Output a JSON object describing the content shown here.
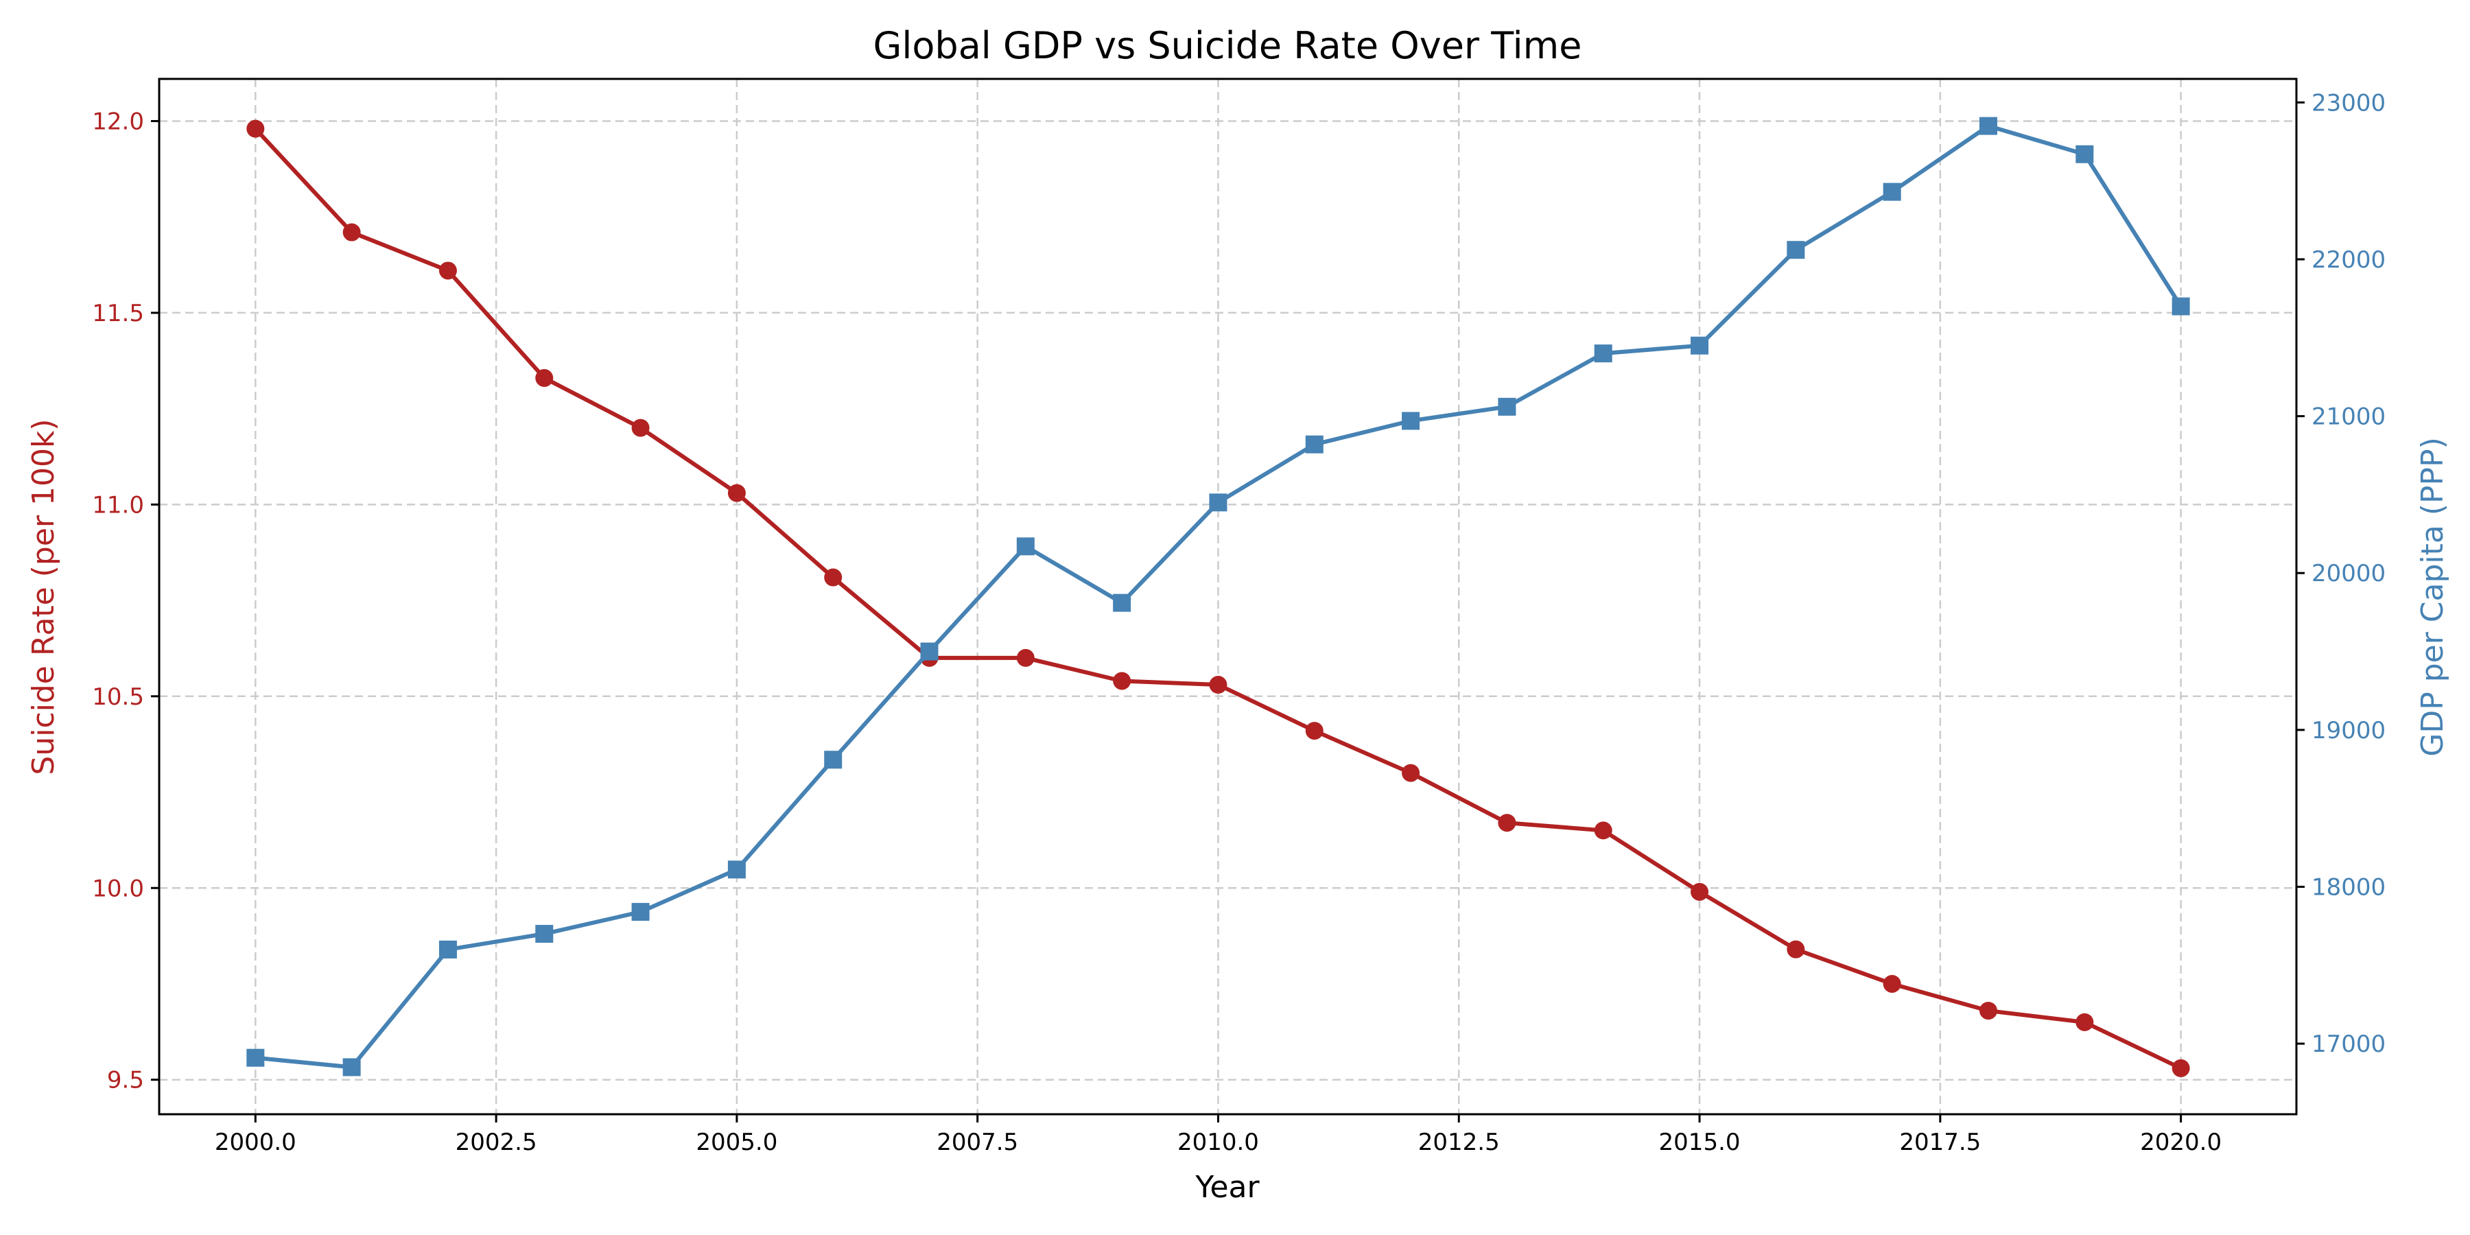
{
  "chart_data": {
    "type": "line",
    "title": "Global GDP vs Suicide Rate Over Time",
    "xlabel": "Year",
    "x": [
      2000,
      2001,
      2002,
      2003,
      2004,
      2005,
      2006,
      2007,
      2008,
      2009,
      2010,
      2011,
      2012,
      2013,
      2014,
      2015,
      2016,
      2017,
      2018,
      2019,
      2020
    ],
    "xlim": [
      1999,
      2021.2
    ],
    "x_ticks": [
      "2000.0",
      "2002.5",
      "2005.0",
      "2007.5",
      "2010.0",
      "2012.5",
      "2015.0",
      "2017.5",
      "2020.0"
    ],
    "grid": true,
    "series": [
      {
        "axis": "left",
        "color": "#b22222",
        "marker": "circle",
        "values": [
          11.98,
          11.71,
          11.61,
          11.33,
          11.2,
          11.03,
          10.81,
          10.6,
          10.6,
          10.54,
          10.53,
          10.41,
          10.3,
          10.17,
          10.15,
          9.99,
          9.84,
          9.75,
          9.68,
          9.65,
          9.53
        ]
      },
      {
        "axis": "right",
        "color": "#4682b4",
        "marker": "square",
        "values": [
          16910,
          16850,
          17600,
          17700,
          17840,
          18110,
          18810,
          19500,
          20170,
          19810,
          20450,
          20820,
          20970,
          21060,
          21400,
          21450,
          22060,
          22430,
          22850,
          22670,
          21700
        ]
      }
    ],
    "y_left": {
      "label": "Suicide Rate (per 100k)",
      "color": "#b22222",
      "ylim": [
        9.41,
        12.11
      ],
      "ticks": [
        "9.5",
        "10.0",
        "10.5",
        "11.0",
        "11.5",
        "12.0"
      ]
    },
    "y_right": {
      "label": "GDP per Capita (PPP)",
      "color": "#4682b4",
      "ylim": [
        16550,
        23150
      ],
      "ticks": [
        "17000",
        "18000",
        "19000",
        "20000",
        "21000",
        "22000",
        "23000"
      ]
    }
  }
}
